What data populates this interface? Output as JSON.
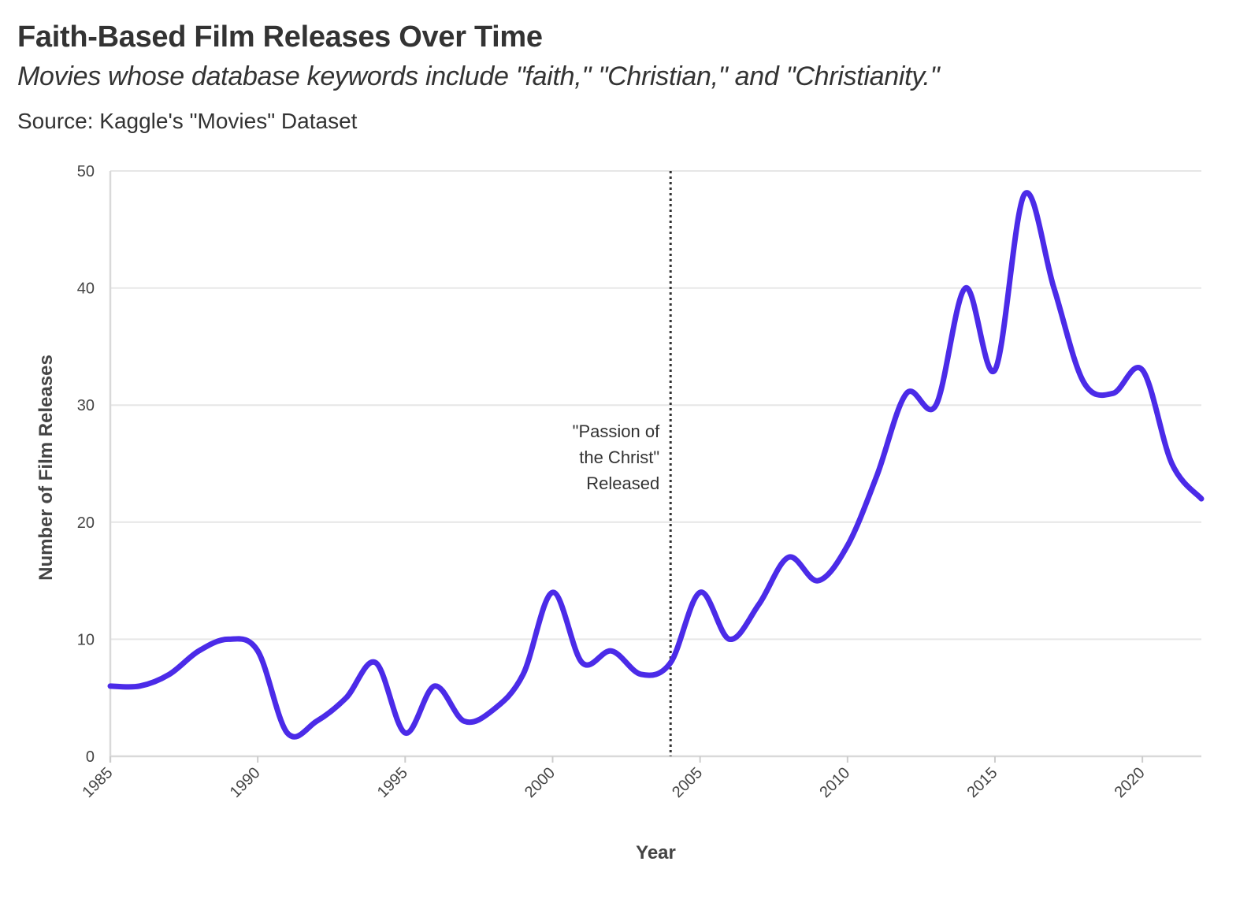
{
  "chart_data": {
    "type": "line",
    "title": "Faith-Based Film Releases Over Time",
    "subtitle": "Movies whose database keywords include \"faith,\" \"Christian,\" and \"Christianity.\"",
    "source": "Source: Kaggle's \"Movies\" Dataset",
    "xlabel": "Year",
    "ylabel": "Number of Film Releases",
    "xlim": [
      1985,
      2022
    ],
    "ylim": [
      0,
      50
    ],
    "x_ticks": [
      1985,
      1990,
      1995,
      2000,
      2005,
      2010,
      2015,
      2020
    ],
    "y_ticks": [
      0,
      10,
      20,
      30,
      40,
      50
    ],
    "grid": "horizontal",
    "line_color": "#4B2BE8",
    "series": [
      {
        "x": [
          1985,
          1986,
          1987,
          1988,
          1989,
          1990,
          1991,
          1992,
          1993,
          1994,
          1995,
          1996,
          1997,
          1998,
          1999,
          2000,
          2001,
          2002,
          2003,
          2004,
          2005,
          2006,
          2007,
          2008,
          2009,
          2010,
          2011,
          2012,
          2013,
          2014,
          2015,
          2016,
          2017,
          2018,
          2019,
          2020,
          2021,
          2022
        ],
        "values": [
          6,
          6,
          7,
          9,
          10,
          9,
          2,
          3,
          5,
          8,
          2,
          6,
          3,
          4,
          7,
          14,
          8,
          9,
          7,
          8,
          14,
          10,
          13,
          17,
          15,
          18,
          24,
          31,
          30,
          40,
          33,
          48,
          40,
          32,
          31,
          33,
          25,
          22
        ]
      }
    ],
    "annotations": [
      {
        "x": 2004,
        "lines": [
          "\"Passion of",
          "the Christ\"",
          "Released"
        ]
      }
    ]
  }
}
